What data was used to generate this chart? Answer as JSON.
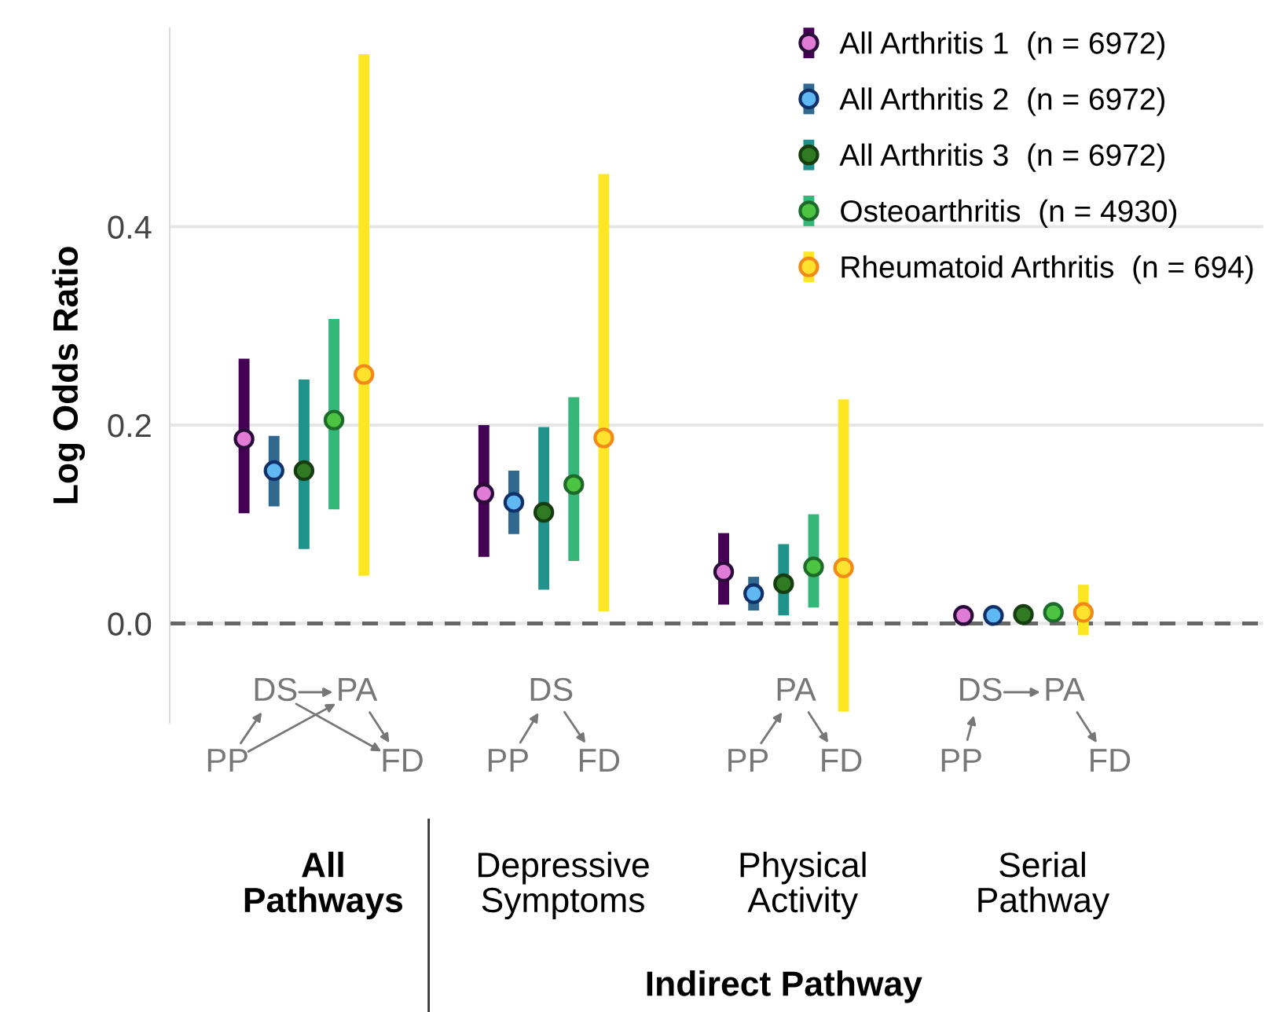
{
  "chart_data": {
    "type": "scatter",
    "ylabel": "Log Odds Ratio",
    "categories": [
      "All\nPathways",
      "Depressive\nSymptoms",
      "Physical\nActivity",
      "Serial\nPathway"
    ],
    "series": [
      {
        "name": "All Arthritis 1  (n = 6972)",
        "color": "#e07bd6",
        "values": [
          0.186,
          0.131,
          0.052,
          0.008
        ],
        "errors": [
          [
            0.111,
            0.267
          ],
          [
            0.067,
            0.2
          ],
          [
            0.019,
            0.091
          ],
          null
        ]
      },
      {
        "name": "All Arthritis 2  (n = 6972)",
        "color": "#5fb8f2",
        "values": [
          0.154,
          0.122,
          0.03,
          0.008
        ],
        "errors": [
          [
            0.118,
            0.189
          ],
          [
            0.09,
            0.154
          ],
          [
            0.013,
            0.047
          ],
          null
        ]
      },
      {
        "name": "All Arthritis 3  (n = 6972)",
        "color": "#2f7a22",
        "values": [
          0.154,
          0.112,
          0.04,
          0.009
        ],
        "errors": [
          [
            0.075,
            0.246
          ],
          [
            0.034,
            0.198
          ],
          [
            0.008,
            0.08
          ],
          null
        ]
      },
      {
        "name": "Osteoarthritis  (n = 4930)",
        "color": "#4cc442",
        "values": [
          0.205,
          0.14,
          0.057,
          0.011
        ],
        "errors": [
          [
            0.115,
            0.307
          ],
          [
            0.063,
            0.228
          ],
          [
            0.016,
            0.11
          ],
          null
        ]
      },
      {
        "name": "Rheumatoid Arthritis  (n = 694)",
        "color": "#ffe22e",
        "values": [
          0.251,
          0.187,
          0.056,
          0.011
        ],
        "errors": [
          [
            0.048,
            0.574
          ],
          [
            0.012,
            0.453
          ],
          [
            -0.089,
            0.226
          ],
          [
            -0.012,
            0.039
          ]
        ]
      }
    ],
    "ylim": [
      -0.1,
      0.6
    ],
    "yticks": [
      {
        "value": 0,
        "label": "0.0"
      },
      {
        "value": 0.2,
        "label": "0.2"
      },
      {
        "value": 0.4,
        "label": "0.4"
      }
    ],
    "ref_lines": [
      {
        "axis": "y",
        "value": 0,
        "color": "#666666",
        "line_style": "dashed"
      }
    ],
    "grid": "y",
    "legend": "top right",
    "marker": "circle",
    "annotations": [
      "DS",
      "PA",
      "PP",
      "FD",
      "DS",
      "PP",
      "FD",
      "PA",
      "PP",
      "FD",
      "DS",
      "PA",
      "PP",
      "FD",
      "Indirect Pathway"
    ]
  }
}
